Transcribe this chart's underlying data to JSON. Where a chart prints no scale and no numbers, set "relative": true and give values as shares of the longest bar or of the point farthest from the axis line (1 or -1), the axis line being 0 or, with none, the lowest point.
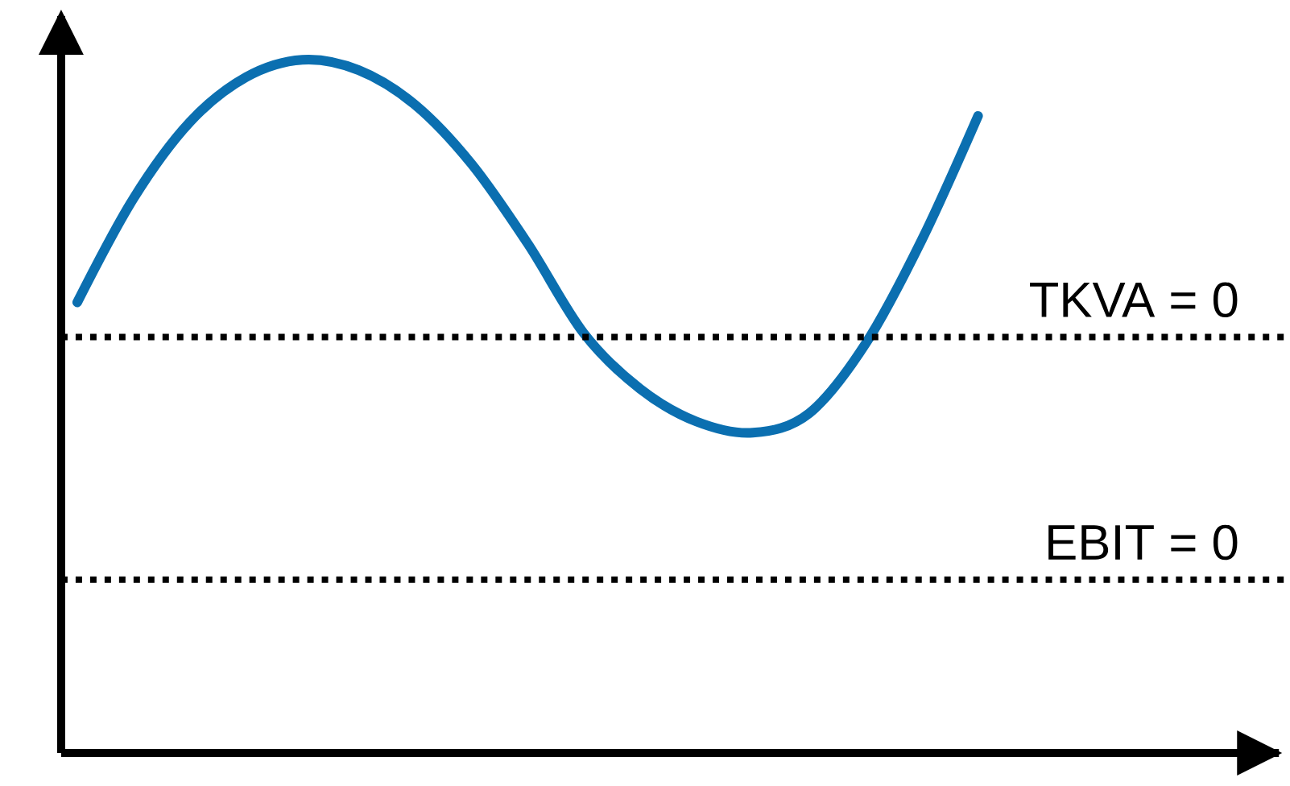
{
  "chart_data": {
    "type": "line",
    "relative": true,
    "categories": [
      null,
      null,
      null,
      null,
      null,
      null,
      null,
      null,
      null,
      null,
      null,
      null,
      null,
      null,
      null,
      null,
      null
    ],
    "series": [
      {
        "color": "#0b6fb0",
        "values": [
          0.65,
          0.8,
          0.91,
          0.975,
          1.0,
          0.985,
          0.935,
          0.85,
          0.735,
          0.605,
          0.525,
          0.478,
          0.462,
          0.49,
          0.59,
          0.74,
          0.919
        ]
      }
    ],
    "ref_lines": [
      {
        "axis": "y",
        "value": 0.6,
        "color": "#000000",
        "line_style": "dotted"
      },
      {
        "axis": "y",
        "value": 0.25,
        "color": "#000000",
        "line_style": "dotted"
      }
    ],
    "annotations": [
      "TKVA = 0",
      "EBIT = 0"
    ],
    "marker": "none",
    "line_style": "solid"
  }
}
